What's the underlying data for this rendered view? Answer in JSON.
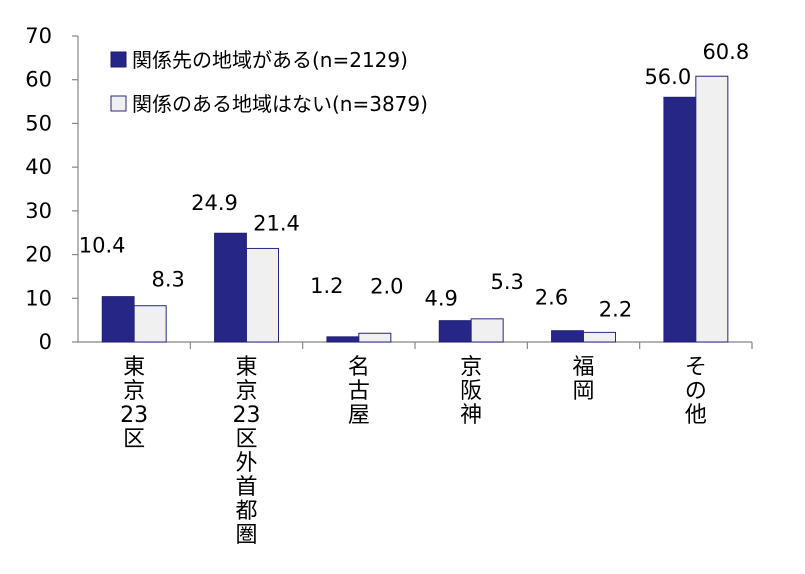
{
  "chart_data": {
    "type": "bar",
    "categories": [
      "東京23区",
      "東京23区外首都圏",
      "名古屋",
      "京阪神",
      "福岡",
      "その他"
    ],
    "series": [
      {
        "name": "関係先の地域がある(n=2129)",
        "values": [
          10.4,
          24.9,
          1.2,
          4.9,
          2.6,
          56.0
        ],
        "labels": [
          "10.4",
          "24.9",
          "1.2",
          "4.9",
          "2.6",
          "56.0"
        ],
        "color": "#262687"
      },
      {
        "name": "関係のある地域はない(n=3879)",
        "values": [
          8.3,
          21.4,
          2.0,
          5.3,
          2.2,
          60.8
        ],
        "labels": [
          "8.3",
          "21.4",
          "2.0",
          "5.3",
          "2.2",
          "60.8"
        ],
        "color": "#f0f0f0"
      }
    ],
    "ylim": [
      0,
      70
    ],
    "yticks": [
      "0",
      "10",
      "20",
      "30",
      "40",
      "50",
      "60",
      "70"
    ],
    "grid": false,
    "legend": "top-left"
  }
}
